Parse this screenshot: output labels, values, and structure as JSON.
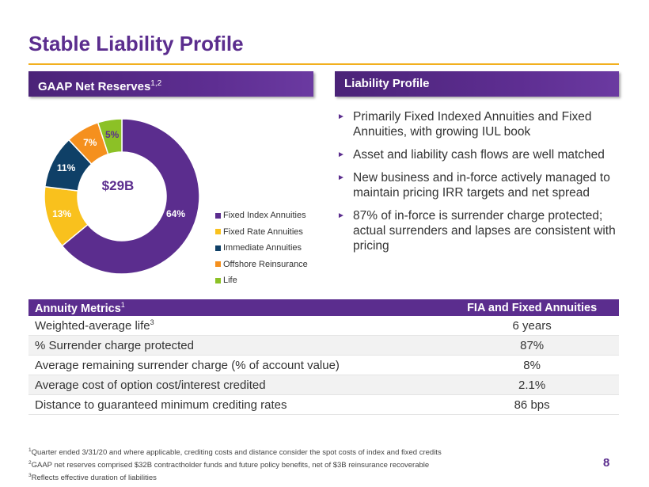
{
  "title": "Stable Liability Profile",
  "left_banner": {
    "label": "GAAP Net Reserves",
    "sup": "1,2"
  },
  "right_banner": {
    "label": "Liability Profile"
  },
  "chart_data": {
    "type": "pie",
    "center_label": "$29B",
    "categories": [
      "Fixed Index Annuities",
      "Fixed Rate Annuities",
      "Immediate Annuities",
      "Offshore Reinsurance",
      "Life"
    ],
    "values": [
      64,
      13,
      11,
      7,
      5
    ],
    "data_labels": [
      "64%",
      "13%",
      "11%",
      "7%",
      "5%"
    ],
    "colors": [
      "#5b2d8e",
      "#f9c11d",
      "#0f4067",
      "#f5901e",
      "#8cc126"
    ],
    "legend": "right"
  },
  "bullets": [
    "Primarily Fixed Indexed Annuities and Fixed Annuities, with growing IUL book",
    "Asset and liability cash flows are well matched",
    "New business and in-force actively managed to maintain pricing IRR targets and net spread",
    "87% of in-force is surrender charge protected; actual surrenders and lapses are consistent with pricing"
  ],
  "bullet_marker": "►",
  "table": {
    "header_label": "Annuity Metrics",
    "header_sup": "1",
    "header_col2": "FIA and Fixed Annuities",
    "rows": [
      {
        "label": "Weighted-average life",
        "sup": "3",
        "value": "6 years"
      },
      {
        "label": "% Surrender charge protected",
        "sup": "",
        "value": "87%"
      },
      {
        "label": "Average remaining surrender charge (% of account value)",
        "sup": "",
        "value": "8%"
      },
      {
        "label": "Average cost of option cost/interest credited",
        "sup": "",
        "value": "2.1%"
      },
      {
        "label": "Distance to guaranteed minimum crediting rates",
        "sup": "",
        "value": "86 bps"
      }
    ]
  },
  "footnotes": [
    {
      "sup": "1",
      "text": "Quarter ended 3/31/20 and where applicable, crediting costs and distance consider the spot costs of index and fixed credits"
    },
    {
      "sup": "2",
      "text": "GAAP net reserves comprised $32B contractholder funds and future policy benefits, net of $3B reinsurance recoverable"
    },
    {
      "sup": "3",
      "text": "Reflects effective duration of liabilities"
    }
  ],
  "page_number": "8"
}
